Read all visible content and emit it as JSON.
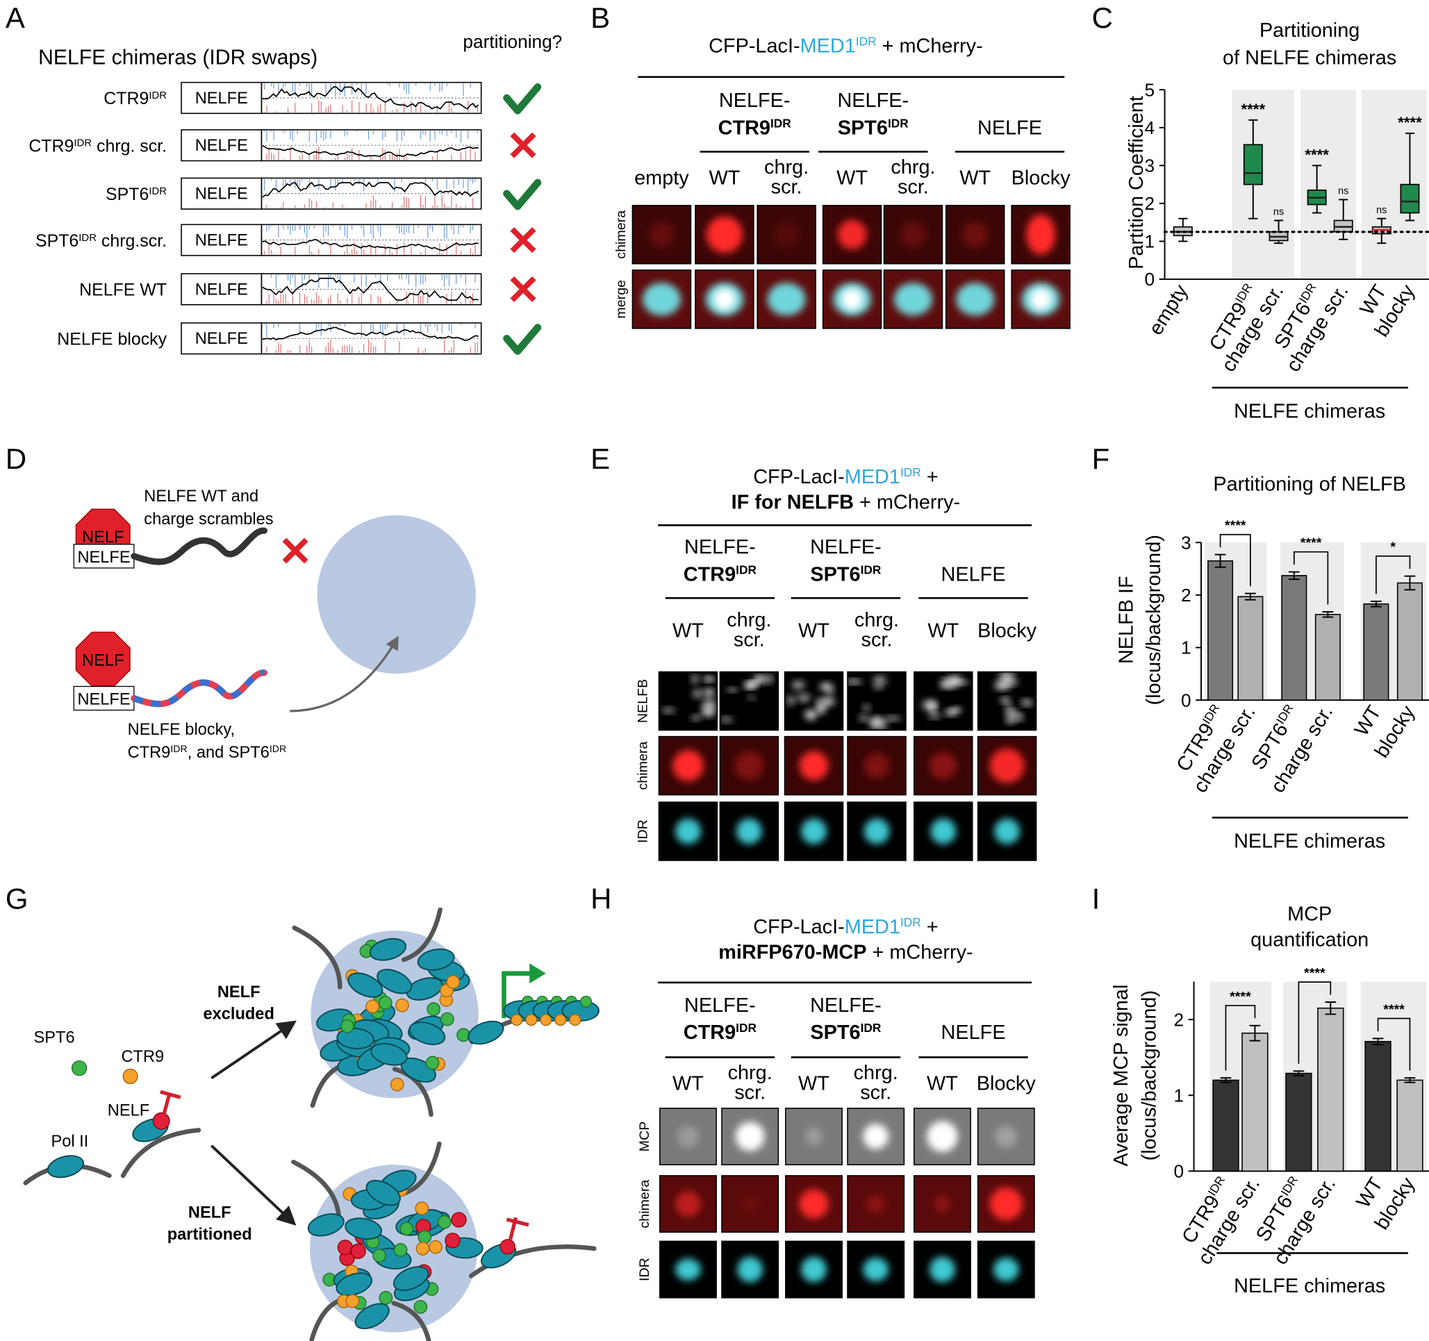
{
  "panel_letters": [
    "A",
    "B",
    "C",
    "D",
    "E",
    "F",
    "G",
    "H",
    "I"
  ],
  "panel_a": {
    "title": "NELFE chimeras (IDR swaps)",
    "column_header": "partitioning?",
    "domain_label": "NELFE",
    "rows": [
      {
        "label": [
          "CTR9",
          {
            "text": "IDR",
            "style": "sup"
          }
        ],
        "partitioning": true
      },
      {
        "label": [
          "CTR9",
          {
            "text": "IDR",
            "style": "sup"
          },
          " chrg. scr."
        ],
        "partitioning": false
      },
      {
        "label": [
          "SPT6",
          {
            "text": "IDR",
            "style": "sup"
          }
        ],
        "partitioning": true
      },
      {
        "label": [
          "SPT6",
          {
            "text": "IDR",
            "style": "sup"
          },
          " chrg.scr."
        ],
        "partitioning": false
      },
      {
        "label": "NELFE WT",
        "partitioning": false
      },
      {
        "label": "NELFE blocky",
        "partitioning": true
      }
    ]
  },
  "panel_b": {
    "header": [
      [
        "CFP-LacI-",
        {
          "text": "MED1",
          "style": "blue"
        },
        {
          "text": "IDR",
          "style": "sup blue"
        },
        " + mCherry-"
      ]
    ],
    "groups": [
      {
        "lines": [
          "NELFE-",
          [
            {
              "text": "CTR9",
              "style": "bold"
            },
            {
              "text": "IDR",
              "style": "sup bold"
            }
          ]
        ]
      },
      {
        "lines": [
          "NELFE-",
          [
            {
              "text": "SPT6",
              "style": "bold"
            },
            {
              "text": "IDR",
              "style": "sup bold"
            }
          ]
        ]
      },
      {
        "lines": [
          "NELFE"
        ]
      }
    ],
    "conditions": [
      [
        "empty"
      ],
      [
        "WT"
      ],
      [
        "chrg.",
        "scr."
      ],
      [
        "WT"
      ],
      [
        "chrg.",
        "scr."
      ],
      [
        "WT"
      ],
      [
        "Blocky"
      ]
    ],
    "row_labels": [
      "chimera",
      "merge"
    ]
  },
  "panel_d": {
    "nelf": "NELF",
    "nelfe": "NELFE",
    "top_caption": [
      "NELFE WT and",
      "charge scrambles"
    ],
    "bottom_caption": [
      "NELFE blocky,",
      [
        "CTR9",
        {
          "text": "IDR",
          "style": "sup"
        },
        ", and SPT6",
        {
          "text": "IDR",
          "style": "sup"
        }
      ]
    ]
  },
  "panel_e": {
    "header": [
      [
        "CFP-LacI-",
        {
          "text": "MED1",
          "style": "blue"
        },
        {
          "text": "IDR",
          "style": "sup blue"
        },
        " +"
      ],
      [
        {
          "text": "IF for NELFB",
          "style": "bold"
        },
        " + mCherry-"
      ]
    ],
    "groups": [
      {
        "lines": [
          "NELFE-",
          [
            {
              "text": "CTR9",
              "style": "bold"
            },
            {
              "text": "IDR",
              "style": "sup bold"
            }
          ]
        ]
      },
      {
        "lines": [
          "NELFE-",
          [
            {
              "text": "SPT6",
              "style": "bold"
            },
            {
              "text": "IDR",
              "style": "sup bold"
            }
          ]
        ]
      },
      {
        "lines": [
          "NELFE"
        ]
      }
    ],
    "conditions": [
      [
        "WT"
      ],
      [
        "chrg.",
        "scr."
      ],
      [
        "WT"
      ],
      [
        "chrg.",
        "scr."
      ],
      [
        "WT"
      ],
      [
        "Blocky"
      ]
    ],
    "row_labels": [
      "NELFB",
      "chimera",
      "IDR"
    ]
  },
  "panel_g": {
    "spt6": "SPT6",
    "ctr9": "CTR9",
    "nelf": "NELF",
    "pol2": "Pol II",
    "excluded": [
      "NELF",
      "excluded"
    ],
    "partitioned": [
      "NELF",
      "partitioned"
    ]
  },
  "panel_h": {
    "header": [
      [
        "CFP-LacI-",
        {
          "text": "MED1",
          "style": "blue"
        },
        {
          "text": "IDR",
          "style": "sup blue"
        },
        " +"
      ],
      [
        {
          "text": "miRFP670-MCP",
          "style": "bold"
        },
        " + mCherry-"
      ]
    ],
    "groups": [
      {
        "lines": [
          "NELFE-",
          [
            {
              "text": "CTR9",
              "style": "bold"
            },
            {
              "text": "IDR",
              "style": "sup bold"
            }
          ]
        ]
      },
      {
        "lines": [
          "NELFE-",
          [
            {
              "text": "SPT6",
              "style": "bold"
            },
            {
              "text": "IDR",
              "style": "sup bold"
            }
          ]
        ]
      },
      {
        "lines": [
          "NELFE"
        ]
      }
    ],
    "conditions": [
      [
        "WT"
      ],
      [
        "chrg.",
        "scr."
      ],
      [
        "WT"
      ],
      [
        "chrg.",
        "scr."
      ],
      [
        "WT"
      ],
      [
        "Blocky"
      ]
    ],
    "row_labels": [
      "MCP",
      "chimera",
      "IDR"
    ]
  },
  "chart_data": [
    {
      "type": "box",
      "title": [
        "Partitioning",
        "of NELFE chimeras"
      ],
      "ylabel": [
        "Partition Coefficient"
      ],
      "categories": [
        "empty",
        [
          "CTR9",
          {
            "text": "IDR",
            "style": "sup"
          }
        ],
        "charge scr.",
        [
          "SPT6",
          {
            "text": "IDR",
            "style": "sup"
          }
        ],
        "charge scr.",
        "WT",
        "blocky"
      ],
      "boxes": [
        {
          "min": 1.0,
          "q1": 1.15,
          "median": 1.25,
          "q3": 1.38,
          "max": 1.6
        },
        {
          "min": 1.6,
          "q1": 2.5,
          "median": 2.8,
          "q3": 3.55,
          "max": 4.2
        },
        {
          "min": 0.95,
          "q1": 1.02,
          "median": 1.12,
          "q3": 1.25,
          "max": 1.55
        },
        {
          "min": 1.75,
          "q1": 1.97,
          "median": 2.15,
          "q3": 2.35,
          "max": 3.0
        },
        {
          "min": 1.05,
          "q1": 1.25,
          "median": 1.38,
          "q3": 1.55,
          "max": 2.1
        },
        {
          "min": 0.95,
          "q1": 1.2,
          "median": 1.3,
          "q3": 1.38,
          "max": 1.6
        },
        {
          "min": 1.55,
          "q1": 1.75,
          "median": 2.05,
          "q3": 2.5,
          "max": 3.85
        }
      ],
      "colors": [
        "#c4c4c4",
        "#1e8a4c",
        "#c4c4c4",
        "#1e8a4c",
        "#c4c4c4",
        "#c4c4c4",
        "#1e8a4c"
      ],
      "median_colors": [
        "#222222",
        "#222222",
        "#222222",
        "#222222",
        "#222222",
        "#e0202a",
        "#222222"
      ],
      "annotations": [
        null,
        "****",
        "ns",
        "****",
        "ns",
        "ns",
        "****"
      ],
      "reference_line": 1.25,
      "ylim": [
        0,
        5
      ],
      "yticks": [
        0,
        1,
        2,
        3,
        4,
        5
      ],
      "group_label": "NELFE chimeras"
    },
    {
      "type": "bar",
      "title": [
        "Partitioning of NELFB"
      ],
      "ylabel": [
        "NELFB IF",
        "(locus/background)"
      ],
      "categories": [
        [
          "CTR9",
          {
            "text": "IDR",
            "style": "sup"
          }
        ],
        "charge scr.",
        [
          "SPT6",
          {
            "text": "IDR",
            "style": "sup"
          }
        ],
        "charge scr.",
        "WT",
        "blocky"
      ],
      "values": [
        2.65,
        1.97,
        2.37,
        1.63,
        1.83,
        2.23
      ],
      "errors": [
        0.12,
        0.06,
        0.07,
        0.05,
        0.05,
        0.13
      ],
      "colors": [
        "#7a7a7a",
        "#b0b0b0",
        "#7a7a7a",
        "#b0b0b0",
        "#7a7a7a",
        "#b0b0b0"
      ],
      "significance": [
        "****",
        "****",
        "*"
      ],
      "ylim": [
        0,
        3
      ],
      "yticks": [
        0,
        1,
        2,
        3
      ],
      "group_label": "NELFE chimeras"
    },
    {
      "type": "bar",
      "title": [
        "MCP",
        "quantification"
      ],
      "ylabel": [
        "Average MCP signal",
        "(locus/background)"
      ],
      "categories": [
        [
          "CTR9",
          {
            "text": "IDR",
            "style": "sup"
          }
        ],
        "charge scr.",
        [
          "SPT6",
          {
            "text": "IDR",
            "style": "sup"
          }
        ],
        "charge scr.",
        "WT",
        "blocky"
      ],
      "values": [
        1.2,
        1.82,
        1.29,
        2.15,
        1.71,
        1.2
      ],
      "errors": [
        0.03,
        0.1,
        0.03,
        0.08,
        0.04,
        0.03
      ],
      "colors": [
        "#333333",
        "#c0c0c0",
        "#333333",
        "#c0c0c0",
        "#333333",
        "#c0c0c0"
      ],
      "significance": [
        "****",
        "****",
        "****"
      ],
      "ylim": [
        0,
        2.5
      ],
      "yticks": [
        0,
        1,
        2
      ],
      "group_label": "NELFE chimeras"
    }
  ]
}
